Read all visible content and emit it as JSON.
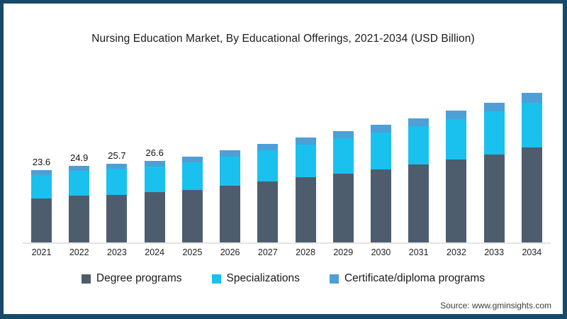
{
  "title": "Nursing Education Market, By Educational Offerings, 2021-2034 (USD Billion)",
  "source_note": "Source: www.gminsights.com",
  "colors": {
    "frame_border": "#164a6b",
    "degree_programs": "#4d5d6e",
    "specializations": "#1ac1ee",
    "certificate_diploma": "#4d9fd6",
    "axis_line": "#e3e3e3"
  },
  "legend": {
    "items": [
      {
        "label": "Degree programs",
        "color": "#4d5d6e"
      },
      {
        "label": "Specializations",
        "color": "#1ac1ee"
      },
      {
        "label": "Certificate/diploma programs",
        "color": "#4d9fd6"
      }
    ]
  },
  "chart_data": {
    "type": "bar",
    "stacked": true,
    "title": "Nursing Education Market, By Educational Offerings, 2021-2034 (USD Billion)",
    "xlabel": "",
    "ylabel": "USD Billion",
    "ylim": [
      0,
      50
    ],
    "grid": false,
    "legend_position": "bottom",
    "categories": [
      "2021",
      "2022",
      "2023",
      "2024",
      "2025",
      "2026",
      "2027",
      "2028",
      "2029",
      "2030",
      "2031",
      "2032",
      "2033",
      "2034"
    ],
    "series": [
      {
        "name": "Degree programs",
        "color": "#4d5d6e",
        "values": [
          14.4,
          15.2,
          15.6,
          16.4,
          17.2,
          18.5,
          19.9,
          21.2,
          22.5,
          23.9,
          25.5,
          27.2,
          28.8,
          31.0
        ]
      },
      {
        "name": "Specializations",
        "color": "#1ac1ee",
        "values": [
          7.7,
          8.1,
          8.4,
          8.5,
          9.0,
          9.6,
          10.2,
          10.8,
          11.5,
          12.0,
          12.4,
          13.0,
          14.0,
          14.7
        ]
      },
      {
        "name": "Certificate/diploma programs",
        "color": "#4d9fd6",
        "values": [
          1.5,
          1.6,
          1.7,
          1.7,
          1.8,
          1.9,
          2.1,
          2.2,
          2.3,
          2.5,
          2.6,
          2.8,
          2.9,
          3.1
        ]
      }
    ],
    "totals": [
      23.6,
      24.9,
      25.7,
      26.6,
      28.0,
      30.0,
      32.2,
      34.2,
      36.3,
      38.4,
      40.5,
      43.0,
      45.7,
      48.8
    ],
    "bar_labels": [
      "23.6",
      "24.9",
      "25.7",
      "26.6",
      "",
      "",
      "",
      "",
      "",
      "",
      "",
      "",
      "",
      ""
    ]
  }
}
